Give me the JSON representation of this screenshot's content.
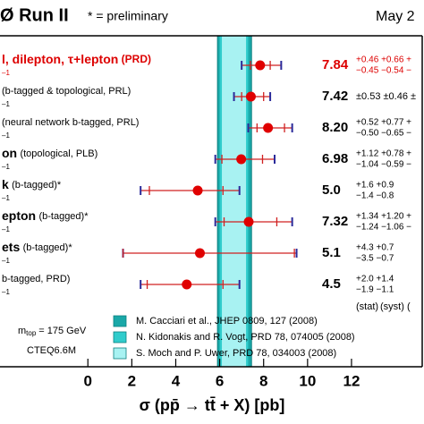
{
  "chart_data": {
    "type": "forest",
    "title": "Ø Run II",
    "subtitle": "* = preliminary",
    "date": "May 2",
    "xlabel": "σ (pp̄ → tt̄ + X) [pb]",
    "xlim": [
      -4,
      15.3
    ],
    "xticks": [
      0,
      2,
      4,
      6,
      8,
      10,
      12
    ],
    "column_labels": [
      "(stat)",
      "(syst)",
      "("
    ],
    "mass_label": "m",
    "mass_sub": "top",
    "mass_value": "= 175 GeV",
    "pdf_note": "CTEQ6.6M",
    "point_color": "#e00000",
    "bar_color": "#d02020",
    "cap_color": "#2a2a9a",
    "rows": [
      {
        "label_bold": "l, dilepton, τ+lepton",
        "label": "(PRD)",
        "sublabel": "–1",
        "color": "#dd0000",
        "value": 7.84,
        "value_label": "7.84",
        "stat": [
          7.4,
          8.3
        ],
        "total": [
          7.0,
          8.8
        ],
        "unc_upper": "+0.46 +0.66 +",
        "unc_lower": "−0.45 −0.54 −"
      },
      {
        "label_bold": "",
        "label": "(b-tagged & topological, PRL)",
        "sublabel": "–1",
        "color": "#000000",
        "value": 7.42,
        "value_label": "7.42",
        "stat": [
          7.0,
          8.0
        ],
        "total": [
          6.65,
          8.3
        ],
        "unc_upper": "±0.53 ±0.46 ±"
      },
      {
        "label_bold": "",
        "label": "(neural network b-tagged, PRL)",
        "sublabel": "–1",
        "color": "#000000",
        "value": 8.2,
        "value_label": "8.20",
        "stat": [
          7.7,
          8.95
        ],
        "total": [
          7.3,
          9.3
        ],
        "unc_upper": "+0.52 +0.77 +",
        "unc_lower": "−0.50 −0.65 −"
      },
      {
        "label_bold": "on",
        "label": "(topological, PLB)",
        "sublabel": "–1",
        "color": "#000000",
        "value": 6.98,
        "value_label": "6.98",
        "stat": [
          6.1,
          7.95
        ],
        "total": [
          5.8,
          8.5
        ],
        "unc_upper": "+1.12 +0.78 +",
        "unc_lower": "−1.04 −0.59 −"
      },
      {
        "label_bold": "k",
        "label": "(b-tagged)*",
        "sublabel": "–1",
        "color": "#000000",
        "value": 5.0,
        "value_label": "5.0",
        "stat": [
          2.8,
          6.15
        ],
        "total": [
          2.4,
          6.9
        ],
        "unc_upper": "+1.6   +0.9",
        "unc_lower": "−1.4   −0.8"
      },
      {
        "label_bold": "epton",
        "label": "(b-tagged)*",
        "sublabel": "–1",
        "color": "#000000",
        "value": 7.32,
        "value_label": "7.32",
        "stat": [
          6.2,
          8.6
        ],
        "total": [
          5.8,
          9.3
        ],
        "unc_upper": "+1.34 +1.20 +",
        "unc_lower": "−1.24 −1.06 −"
      },
      {
        "label_bold": "ets",
        "label": "(b-tagged)*",
        "sublabel": "–1",
        "color": "#000000",
        "value": 5.1,
        "value_label": "5.1",
        "stat": [
          1.6,
          9.4
        ],
        "total": [
          1.6,
          9.5
        ],
        "unc_upper": "+4.3   +0.7",
        "unc_lower": "−3.5   −0.7"
      },
      {
        "label_bold": "",
        "label": "b-tagged, PRD)",
        "sublabel": "–1",
        "color": "#000000",
        "value": 4.5,
        "value_label": "4.5",
        "stat": [
          2.7,
          6.15
        ],
        "total": [
          2.4,
          6.9
        ],
        "unc_upper": "+2.0   +1.4",
        "unc_lower": "−1.9   −1.1"
      }
    ],
    "bands": [
      {
        "name": "M. Cacciari et al., JHEP 0809, 127 (2008)",
        "color": "#1aa8a8",
        "range": [
          5.9,
          7.45
        ]
      },
      {
        "name": "N. Kidonakis and R. Vogt, PRD 78, 074005 (2008)",
        "color": "#30cccc",
        "range": [
          6.0,
          7.3
        ]
      },
      {
        "name": "S. Moch and P. Uwer, PRD 78, 034003 (2008)",
        "color": "#a8f2f2",
        "range": [
          6.1,
          7.2
        ]
      }
    ]
  }
}
